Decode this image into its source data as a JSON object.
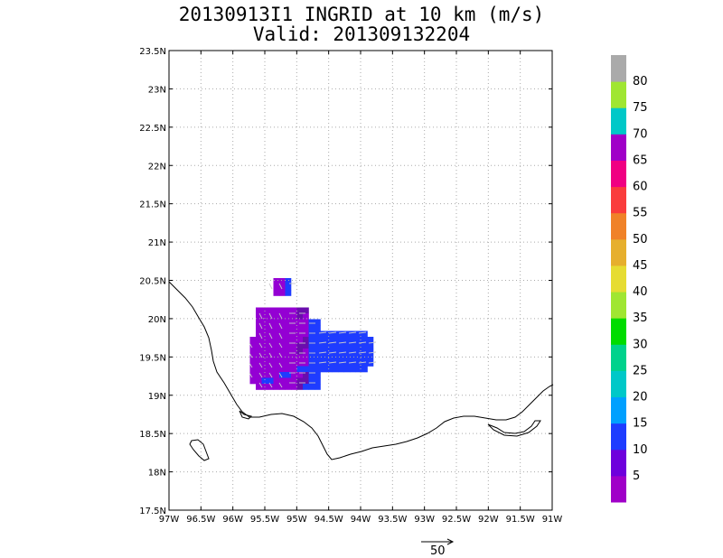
{
  "title": {
    "line1": "20130913I1 INGRID at 10 km (m/s)",
    "line2": "Valid: 201309132204"
  },
  "map": {
    "lon_ticks": [
      "97W",
      "96.5W",
      "96W",
      "95.5W",
      "95W",
      "94.5W",
      "94W",
      "93.5W",
      "93W",
      "92.5W",
      "92W",
      "91.5W",
      "91W"
    ],
    "lat_ticks": [
      "17.5N",
      "18N",
      "18.5N",
      "19N",
      "19.5N",
      "20N",
      "20.5N",
      "21N",
      "21.5N",
      "22N",
      "22.5N",
      "23N",
      "23.5N"
    ],
    "lon_range": [
      -97,
      -91
    ],
    "lat_range": [
      17.5,
      23.5
    ],
    "grid": true
  },
  "colorbar": {
    "labels": [
      "5",
      "10",
      "15",
      "20",
      "25",
      "30",
      "35",
      "40",
      "45",
      "50",
      "55",
      "60",
      "65",
      "70",
      "75",
      "80"
    ],
    "colors": [
      "#a000c8",
      "#6e00dc",
      "#1e3cff",
      "#00a0ff",
      "#00c8c8",
      "#00d28c",
      "#00dc00",
      "#a0e632",
      "#e6dc32",
      "#e6af2d",
      "#f08228",
      "#fa3c3c",
      "#f00082",
      "#a000c8",
      "#00c8c8",
      "#a0e632",
      "#aaaaaa"
    ]
  },
  "wind_field": {
    "colors": {
      "purple": "#9400d3",
      "violet": "#6a0dad",
      "blue": "#1e3cff",
      "vector": "#c8c8c8"
    }
  },
  "reference_vector": {
    "label": "50"
  }
}
